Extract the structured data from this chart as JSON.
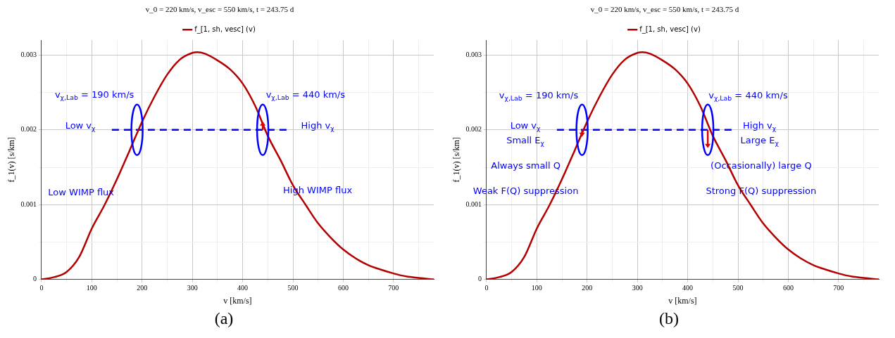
{
  "chart_data": [
    {
      "type": "line",
      "title": "v_0 = 220 km/s, v_esc = 550 km/s, t = 243.75 d",
      "xlabel": "v [km/s]",
      "ylabel": "f_1(v) [s/km]",
      "legend": "top",
      "grid": true,
      "marker": "none",
      "xlim": [
        0,
        780
      ],
      "ylim": [
        0,
        0.0032
      ],
      "xticks": [
        0,
        {
          "value": 50,
          "label": null
        },
        100,
        {
          "value": 150,
          "label": null
        },
        200,
        {
          "value": 250,
          "label": null
        },
        300,
        {
          "value": 350,
          "label": null
        },
        400,
        {
          "value": 450,
          "label": null
        },
        500,
        {
          "value": 550,
          "label": null
        },
        600,
        {
          "value": 650,
          "label": null
        },
        700,
        {
          "value": 750,
          "label": null
        }
      ],
      "yticks": [
        0,
        {
          "value": 0.0005,
          "label": null
        },
        0.001,
        {
          "value": 0.0015,
          "label": null
        },
        0.002,
        {
          "value": 0.0025,
          "label": null
        },
        0.003
      ],
      "series": [
        {
          "name": "f_[1, sh, vesc] (v)",
          "color": "#b40000",
          "line_style": "solid",
          "x": [
            0,
            25,
            50,
            75,
            100,
            125,
            150,
            175,
            200,
            225,
            250,
            275,
            300,
            310,
            325,
            350,
            375,
            400,
            425,
            450,
            475,
            500,
            525,
            550,
            575,
            600,
            625,
            650,
            675,
            700,
            725,
            750,
            780
          ],
          "values": [
            0,
            3e-05,
            0.0001,
            0.0003,
            0.00068,
            0.00099,
            0.00134,
            0.00172,
            0.00211,
            0.00245,
            0.00274,
            0.00294,
            0.00303,
            0.00304,
            0.00302,
            0.00293,
            0.00281,
            0.00262,
            0.00232,
            0.00192,
            0.0016,
            0.00126,
            0.001,
            0.00075,
            0.00056,
            0.0004,
            0.00028,
            0.00019,
            0.00013,
            8e-05,
            4e-05,
            2e-05,
            0
          ]
        },
        {
          "color": "#0000ff",
          "line_style": "dashed",
          "x": [
            140,
            490
          ],
          "values": [
            0.002,
            0.002
          ]
        }
      ],
      "annotations": [
        "v$_{χ,Lab}$ = 190 km/s",
        "v$_{χ,Lab}$ = 440 km/s",
        "Low v$_{χ}$",
        "High v$_{χ}$",
        "Low WIMP flux",
        "High WIMP flux",
        "(a)"
      ]
    },
    {
      "type": "line",
      "title": "v_0 = 220 km/s, v_esc = 550 km/s, t = 243.75 d",
      "xlabel": "v [km/s]",
      "ylabel": "f_1(v) [s/km]",
      "legend": "top",
      "grid": true,
      "marker": "none",
      "xlim": [
        0,
        780
      ],
      "ylim": [
        0,
        0.0032
      ],
      "xticks": [
        0,
        {
          "value": 50,
          "label": null
        },
        100,
        {
          "value": 150,
          "label": null
        },
        200,
        {
          "value": 250,
          "label": null
        },
        300,
        {
          "value": 350,
          "label": null
        },
        400,
        {
          "value": 450,
          "label": null
        },
        500,
        {
          "value": 550,
          "label": null
        },
        600,
        {
          "value": 650,
          "label": null
        },
        700,
        {
          "value": 750,
          "label": null
        }
      ],
      "yticks": [
        0,
        {
          "value": 0.0005,
          "label": null
        },
        0.001,
        {
          "value": 0.0015,
          "label": null
        },
        0.002,
        {
          "value": 0.0025,
          "label": null
        },
        0.003
      ],
      "series": [
        {
          "name": "f_[1, sh, vesc] (v)",
          "color": "#b40000",
          "line_style": "solid",
          "x": [
            0,
            25,
            50,
            75,
            100,
            125,
            150,
            175,
            200,
            225,
            250,
            275,
            300,
            310,
            325,
            350,
            375,
            400,
            425,
            450,
            475,
            500,
            525,
            550,
            575,
            600,
            625,
            650,
            675,
            700,
            725,
            750,
            780
          ],
          "values": [
            0,
            3e-05,
            0.0001,
            0.0003,
            0.00068,
            0.00099,
            0.00134,
            0.00172,
            0.00211,
            0.00245,
            0.00274,
            0.00294,
            0.00303,
            0.00304,
            0.00302,
            0.00293,
            0.00281,
            0.00262,
            0.00232,
            0.00192,
            0.0016,
            0.00126,
            0.001,
            0.00075,
            0.00056,
            0.0004,
            0.00028,
            0.00019,
            0.00013,
            8e-05,
            4e-05,
            2e-05,
            0
          ]
        },
        {
          "color": "#0000ff",
          "line_style": "dashed",
          "x": [
            140,
            490
          ],
          "values": [
            0.002,
            0.002
          ]
        }
      ],
      "annotations": [
        "v$_{χ,Lab}$ = 190 km/s",
        "v$_{χ,Lab}$ = 440 km/s",
        "Low v$_{χ}$",
        "Small E$_{χ}$",
        "High v$_{χ}$",
        "Large E$_{χ}$",
        "Always small Q",
        "(Occasionally) large Q",
        "Weak F(Q) suppression",
        "Strong F(Q) suppression",
        "(b)"
      ]
    }
  ]
}
